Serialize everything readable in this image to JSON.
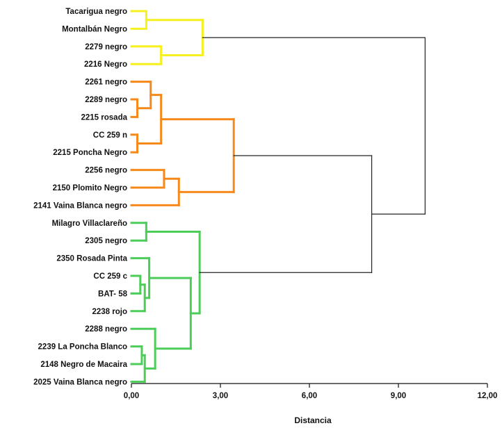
{
  "chart_data": {
    "type": "dendrogram",
    "xlabel": "Distancia",
    "xlim": [
      0,
      12
    ],
    "ticks": [
      0,
      3,
      6,
      9,
      12
    ],
    "tick_labels": [
      "0,00",
      "3,00",
      "6,00",
      "9,00",
      "12,00"
    ],
    "leaves": [
      "Tacarigua negro",
      "Montalbán Negro",
      "2279 negro",
      "2216 Negro",
      "2261 negro",
      "2289 negro",
      "2215 rosada",
      "CC 259 n",
      "2215 Poncha Negro",
      "2256 negro",
      "2150 Plomito Negro",
      "2141 Vaina Blanca negro",
      "Milagro Villaclareño",
      "2305 negro",
      "2350 Rosada Pinta",
      "CC 259 c",
      "BAT- 58",
      "2238 rojo",
      "2288 negro",
      "2239 La Poncha Blanco",
      "2148 Negro de Macaira",
      "2025 Vaina Blanca negro"
    ],
    "colors": {
      "cluster_1": "#f6f01e",
      "cluster_2": "#f7891b",
      "cluster_3": "#4ccd5a",
      "root": "#222222"
    },
    "merges": [
      {
        "id": "a",
        "children": [
          0,
          1
        ],
        "height": 0.5,
        "color": "cluster_1"
      },
      {
        "id": "b",
        "children": [
          2,
          3
        ],
        "height": 1.0,
        "color": "cluster_1"
      },
      {
        "id": "c",
        "children": [
          "a",
          "b"
        ],
        "height": 2.4,
        "color": "cluster_1"
      },
      {
        "id": "d",
        "children": [
          7,
          8
        ],
        "height": 0.2,
        "color": "cluster_2"
      },
      {
        "id": "e",
        "children": [
          5,
          6
        ],
        "height": 0.2,
        "color": "cluster_2"
      },
      {
        "id": "f",
        "children": [
          4,
          "e"
        ],
        "height": 0.65,
        "color": "cluster_2"
      },
      {
        "id": "g",
        "children": [
          "f",
          "d"
        ],
        "height": 1.0,
        "color": "cluster_2"
      },
      {
        "id": "h",
        "children": [
          9,
          10
        ],
        "height": 1.1,
        "color": "cluster_2"
      },
      {
        "id": "i",
        "children": [
          "h",
          11
        ],
        "height": 1.6,
        "color": "cluster_2"
      },
      {
        "id": "j",
        "children": [
          "g",
          "i"
        ],
        "height": 3.45,
        "color": "cluster_2"
      },
      {
        "id": "k",
        "children": [
          12,
          13
        ],
        "height": 0.5,
        "color": "cluster_3"
      },
      {
        "id": "l",
        "children": [
          15,
          16
        ],
        "height": 0.3,
        "color": "cluster_3"
      },
      {
        "id": "m",
        "children": [
          "l",
          17
        ],
        "height": 0.45,
        "color": "cluster_3"
      },
      {
        "id": "n",
        "children": [
          14,
          "m"
        ],
        "height": 0.6,
        "color": "cluster_3"
      },
      {
        "id": "o",
        "children": [
          19,
          20
        ],
        "height": 0.35,
        "color": "cluster_3"
      },
      {
        "id": "p",
        "children": [
          "o",
          21
        ],
        "height": 0.45,
        "color": "cluster_3"
      },
      {
        "id": "q",
        "children": [
          18,
          "p"
        ],
        "height": 0.8,
        "color": "cluster_3"
      },
      {
        "id": "r",
        "children": [
          "n",
          "q"
        ],
        "height": 2.0,
        "color": "cluster_3"
      },
      {
        "id": "s",
        "children": [
          "k",
          "r"
        ],
        "height": 2.3,
        "color": "cluster_3"
      },
      {
        "id": "t",
        "children": [
          "j",
          "s"
        ],
        "height": 8.1,
        "color": "root"
      },
      {
        "id": "u",
        "children": [
          "c",
          "t"
        ],
        "height": 9.9,
        "color": "root"
      }
    ]
  }
}
